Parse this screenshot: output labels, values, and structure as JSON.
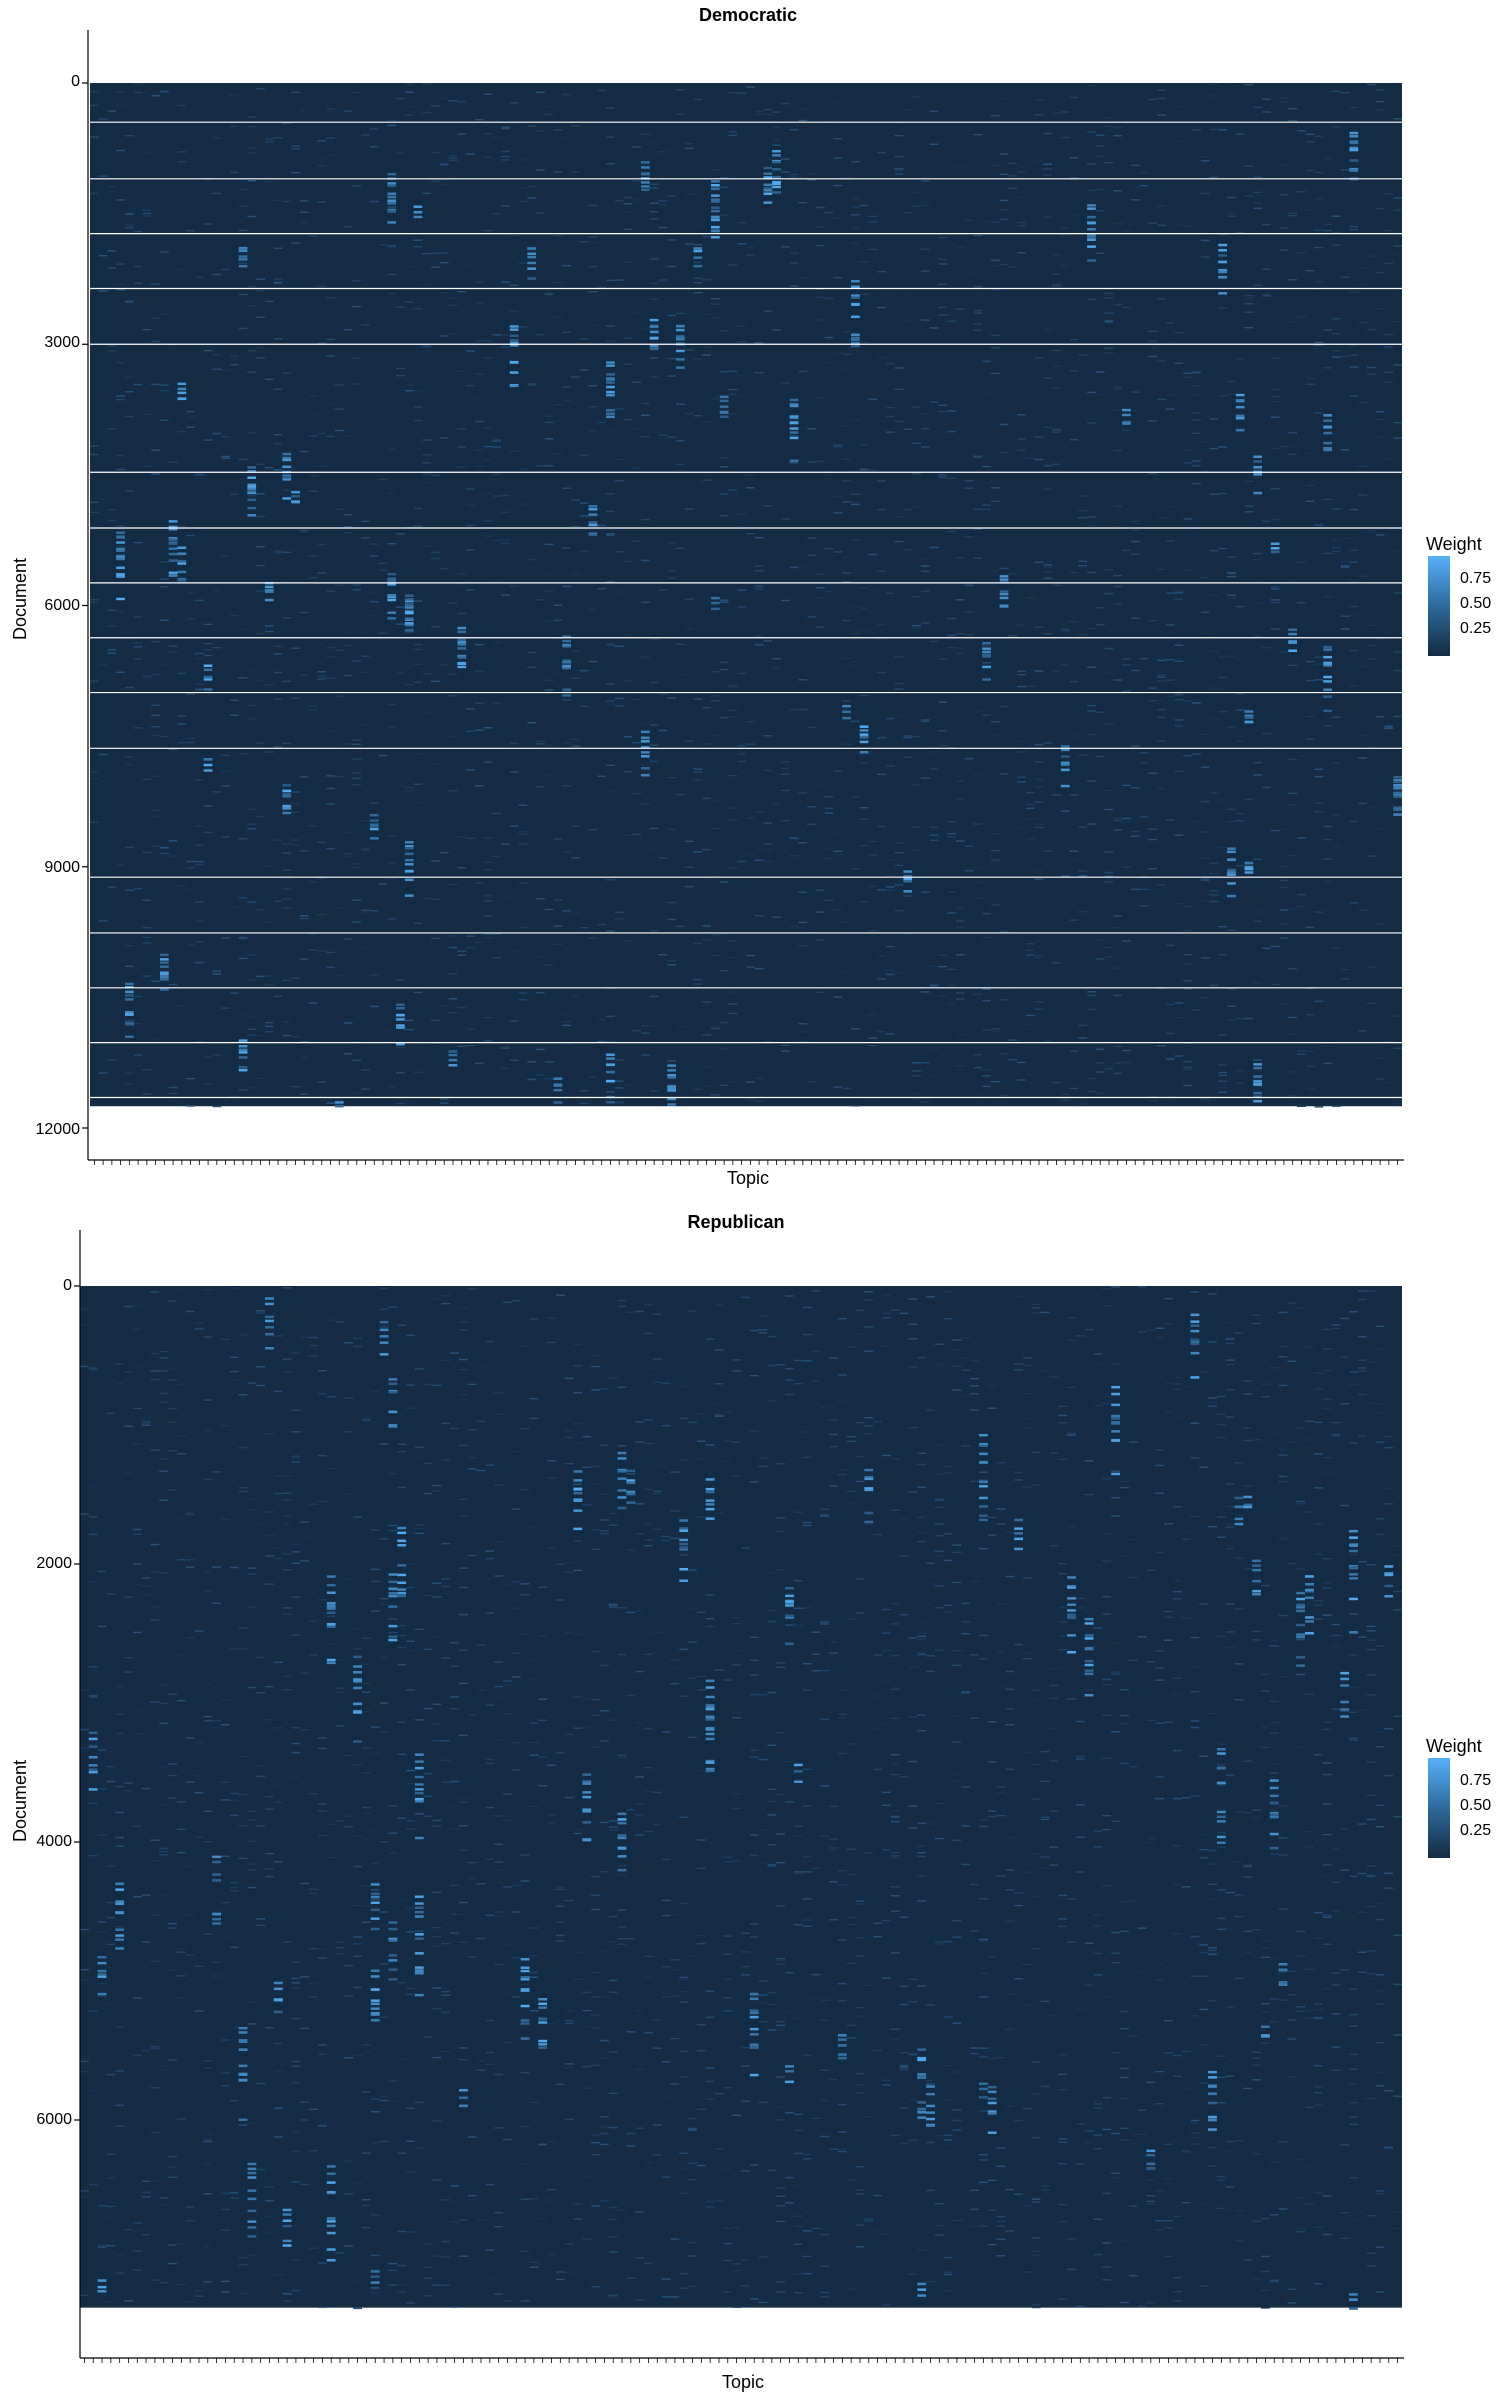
{
  "colors": {
    "low": "#132B43",
    "high": "#56B1F7",
    "divider": "#ffffff"
  },
  "chart_data": [
    {
      "type": "heatmap",
      "title": "Democratic",
      "xlabel": "Topic",
      "ylabel": "Document",
      "ylim": [
        0,
        12000
      ],
      "y_ticks": [
        "0",
        "3000",
        "6000",
        "9000",
        "12000"
      ],
      "y_tick_values": [
        0,
        3000,
        6000,
        9000,
        12000
      ],
      "n_documents": 11750,
      "n_topics": 150,
      "legend": {
        "title": "Weight",
        "ticks": [
          "0.75",
          "0.50",
          "0.25"
        ],
        "tick_values": [
          0.75,
          0.5,
          0.25
        ],
        "placement": "right"
      },
      "divider_documents": [
        450,
        1100,
        1730,
        2360,
        3000,
        4470,
        5110,
        5740,
        6370,
        7000,
        7640,
        9120,
        9760,
        10390,
        11020,
        11650
      ]
    },
    {
      "type": "heatmap",
      "title": "Republican",
      "xlabel": "Topic",
      "ylabel": "Document",
      "ylim": [
        0,
        7650
      ],
      "y_ticks": [
        "0",
        "2000",
        "4000",
        "6000"
      ],
      "y_tick_values": [
        0,
        2000,
        4000,
        6000
      ],
      "n_documents": 7350,
      "n_topics": 150,
      "legend": {
        "title": "Weight",
        "ticks": [
          "0.75",
          "0.50",
          "0.25"
        ],
        "tick_values": [
          0.75,
          0.5,
          0.25
        ],
        "placement": "right"
      },
      "divider_documents": []
    }
  ]
}
